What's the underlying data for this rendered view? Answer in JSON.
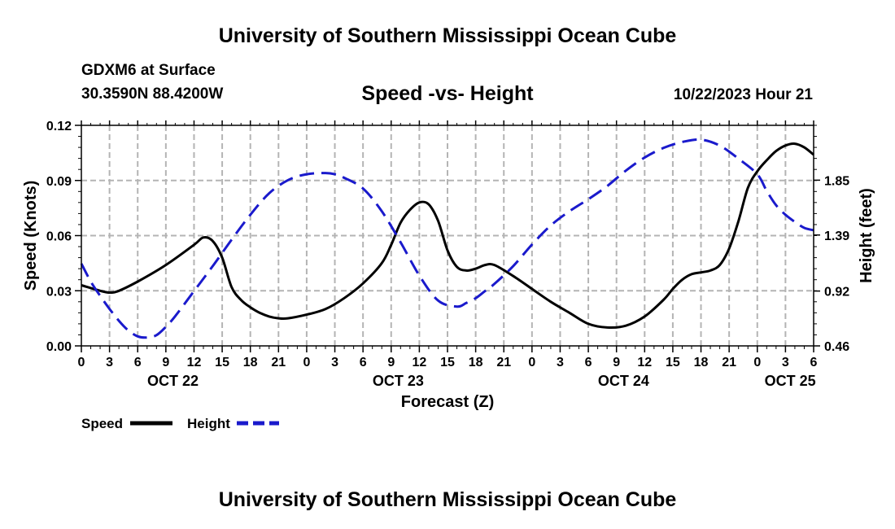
{
  "header": {
    "title": "University of Southern Mississippi Ocean Cube",
    "station": "GDXM6 at Surface",
    "coords": "30.3590N  88.4200W",
    "subtitle": "Speed -vs- Height",
    "datetime": "10/22/2023 Hour 21",
    "footer_title": "University of Southern Mississippi Ocean Cube"
  },
  "colors": {
    "speed": "#000000",
    "height": "#1a1acc",
    "grid": "#b4b4b4"
  },
  "chart_data": {
    "type": "line",
    "xlabel": "Forecast (Z)",
    "ylabel": "Speed (Knots)",
    "y2label": "Height (feet)",
    "xlim": [
      0,
      78
    ],
    "ylim": [
      0,
      0.12
    ],
    "y2lim": [
      0.46,
      2.31
    ],
    "grid": true,
    "x_tick_labels": [
      "0",
      "3",
      "6",
      "9",
      "12",
      "15",
      "18",
      "21",
      "0",
      "3",
      "6",
      "9",
      "12",
      "15",
      "18",
      "21",
      "0",
      "3",
      "6",
      "9",
      "12",
      "15",
      "18",
      "21",
      "0",
      "3",
      "6"
    ],
    "y_ticks": [
      "0.00",
      "0.03",
      "0.06",
      "0.09",
      "0.12"
    ],
    "y2_ticks": [
      "0.46",
      "0.92",
      "1.39",
      "1.85"
    ],
    "date_labels": [
      {
        "label": "OCT 22",
        "hour": 9.75
      },
      {
        "label": "OCT 23",
        "hour": 33.75
      },
      {
        "label": "OCT 24",
        "hour": 57.75
      },
      {
        "label": "OCT 25",
        "hour": 75.5
      }
    ],
    "series": [
      {
        "name": "Speed",
        "axis": "left",
        "x": [
          0,
          2,
          3,
          4,
          6,
          9,
          12,
          13,
          14,
          15,
          16,
          17,
          18,
          19,
          20,
          21,
          22,
          24,
          26,
          28,
          30,
          32,
          33,
          34,
          35,
          36,
          37,
          38,
          39,
          40,
          41,
          42,
          43,
          44,
          46,
          48,
          50,
          52,
          54,
          56,
          58,
          60,
          62,
          63,
          64,
          65,
          66,
          67,
          68,
          69,
          70,
          71,
          72,
          73,
          74,
          75,
          76,
          77,
          78
        ],
        "values": [
          0.033,
          0.03,
          0.029,
          0.03,
          0.035,
          0.044,
          0.055,
          0.059,
          0.057,
          0.048,
          0.032,
          0.025,
          0.021,
          0.018,
          0.016,
          0.015,
          0.015,
          0.017,
          0.02,
          0.026,
          0.034,
          0.045,
          0.055,
          0.067,
          0.074,
          0.078,
          0.077,
          0.068,
          0.052,
          0.043,
          0.041,
          0.042,
          0.044,
          0.044,
          0.038,
          0.031,
          0.024,
          0.018,
          0.012,
          0.01,
          0.011,
          0.016,
          0.025,
          0.031,
          0.036,
          0.039,
          0.04,
          0.041,
          0.044,
          0.053,
          0.068,
          0.086,
          0.095,
          0.101,
          0.106,
          0.109,
          0.11,
          0.108,
          0.104
        ]
      },
      {
        "name": "Height",
        "axis": "right",
        "x": [
          0,
          1,
          2,
          3,
          4,
          5,
          6,
          7,
          8,
          9,
          10,
          12,
          14,
          16,
          18,
          20,
          22,
          24,
          26,
          27,
          28,
          30,
          32,
          34,
          36,
          38,
          40,
          41,
          42,
          43,
          44,
          46,
          48,
          50,
          52,
          54,
          56,
          58,
          60,
          62,
          64,
          66,
          68,
          70,
          72,
          73,
          74,
          75,
          76,
          77,
          78
        ],
        "values": [
          1.15,
          1.0,
          0.88,
          0.77,
          0.67,
          0.59,
          0.54,
          0.53,
          0.55,
          0.62,
          0.71,
          0.92,
          1.13,
          1.35,
          1.56,
          1.74,
          1.85,
          1.9,
          1.91,
          1.9,
          1.87,
          1.78,
          1.59,
          1.33,
          1.05,
          0.84,
          0.79,
          0.82,
          0.86,
          0.92,
          0.98,
          1.13,
          1.31,
          1.47,
          1.59,
          1.69,
          1.8,
          1.93,
          2.04,
          2.12,
          2.17,
          2.19,
          2.14,
          2.03,
          1.9,
          1.76,
          1.64,
          1.56,
          1.5,
          1.45,
          1.43
        ]
      }
    ],
    "legend": [
      {
        "label": "Speed",
        "style": "solid"
      },
      {
        "label": "Height",
        "style": "dashed"
      }
    ],
    "legend_position": "bottom-left"
  }
}
